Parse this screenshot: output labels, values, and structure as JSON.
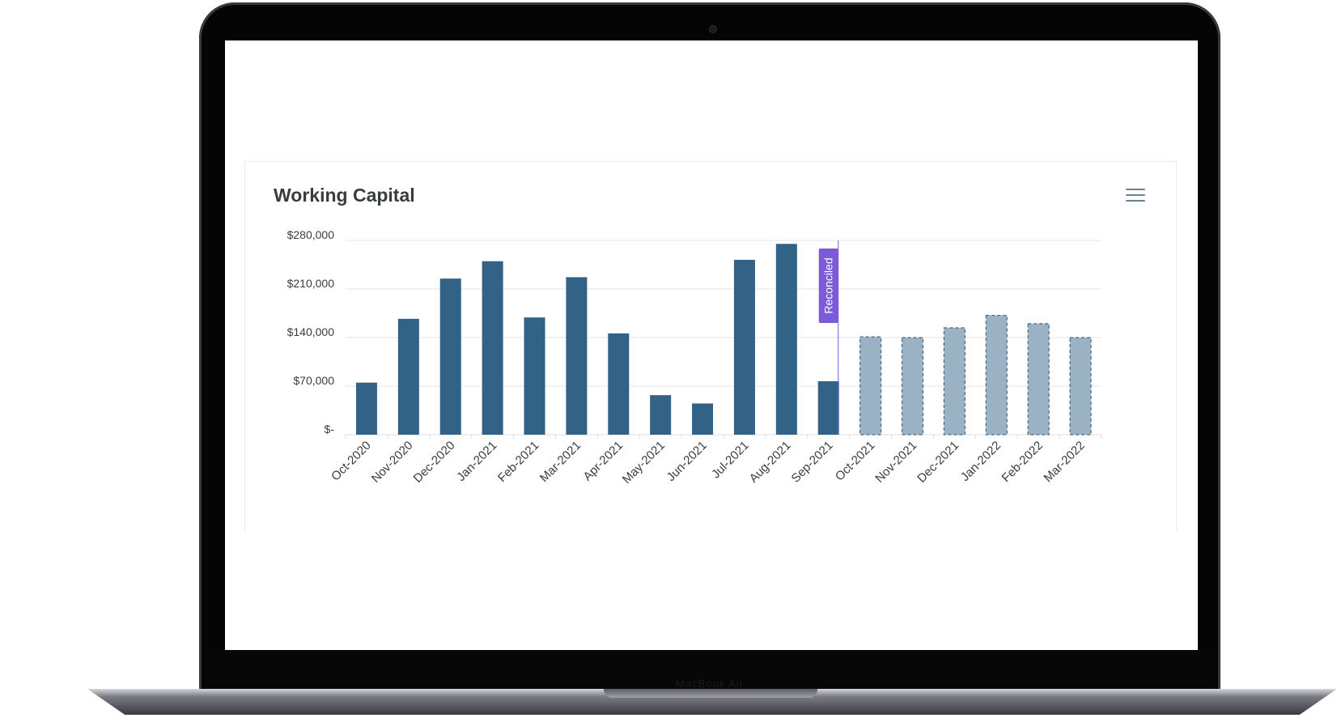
{
  "card": {
    "title": "Working Capital",
    "menu_icon": "hamburger-menu-icon"
  },
  "device": {
    "type": "laptop",
    "chin_label": "MacBook Air"
  },
  "colors": {
    "actual_bar": "#336287",
    "forecast_bar": "#9bb1c4",
    "forecast_border": "#4b6a85",
    "annotation": "#7d5ad7",
    "gridline": "#e6e6e6",
    "text": "#373d3f"
  },
  "chart_data": {
    "type": "bar",
    "title": "Working Capital",
    "xlabel": "",
    "ylabel": "",
    "ylim": [
      0,
      280000
    ],
    "y_ticks": [
      {
        "value": 0,
        "label": "$-"
      },
      {
        "value": 70000,
        "label": "$70,000"
      },
      {
        "value": 140000,
        "label": "$140,000"
      },
      {
        "value": 210000,
        "label": "$210,000"
      },
      {
        "value": 280000,
        "label": "$280,000"
      }
    ],
    "grid": true,
    "categories": [
      "Oct-2020",
      "Nov-2020",
      "Dec-2020",
      "Jan-2021",
      "Feb-2021",
      "Mar-2021",
      "Apr-2021",
      "May-2021",
      "Jun-2021",
      "Jul-2021",
      "Aug-2021",
      "Sep-2021",
      "Oct-2021",
      "Nov-2021",
      "Dec-2021",
      "Jan-2022",
      "Feb-2022",
      "Mar-2022"
    ],
    "values": [
      75000,
      167000,
      225000,
      250000,
      169000,
      227000,
      146000,
      57000,
      45000,
      252000,
      275000,
      77000,
      141000,
      140000,
      154000,
      172000,
      160000,
      140000
    ],
    "forecast_from_index": 12,
    "annotation": {
      "text": "Reconciled",
      "position_category": "Sep-2021",
      "placement": "right-of-category"
    }
  }
}
